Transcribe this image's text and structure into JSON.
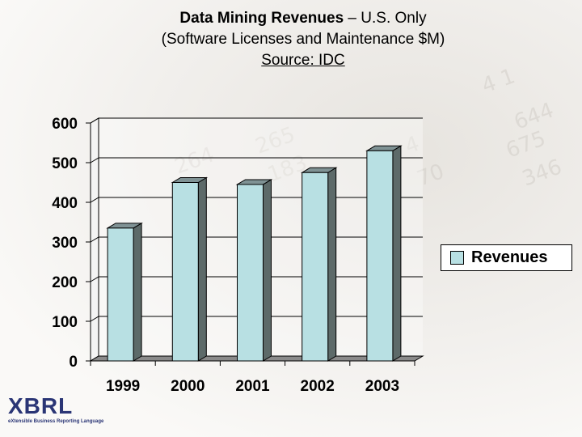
{
  "title": {
    "bold": "Data Mining Revenues",
    "rest": " – U.S. Only",
    "line2": "(Software Licenses and Maintenance $M)",
    "line3": "Source:  IDC"
  },
  "chart_data": {
    "type": "bar",
    "categories": [
      "1999",
      "2000",
      "2001",
      "2002",
      "2003"
    ],
    "series": [
      {
        "name": "Revenues",
        "values": [
          335,
          450,
          445,
          475,
          530
        ]
      }
    ],
    "ylim": [
      0,
      600
    ],
    "yticks": [
      0,
      100,
      200,
      300,
      400,
      500,
      600
    ],
    "grid": true,
    "legend": "right",
    "bar_color": "#b8e0e3",
    "bar_side_color": "#5d6a69",
    "floor_color": "#8a8a8a"
  },
  "logo": {
    "main": "XBRL",
    "sub": "eXtensible Business Reporting Language"
  }
}
